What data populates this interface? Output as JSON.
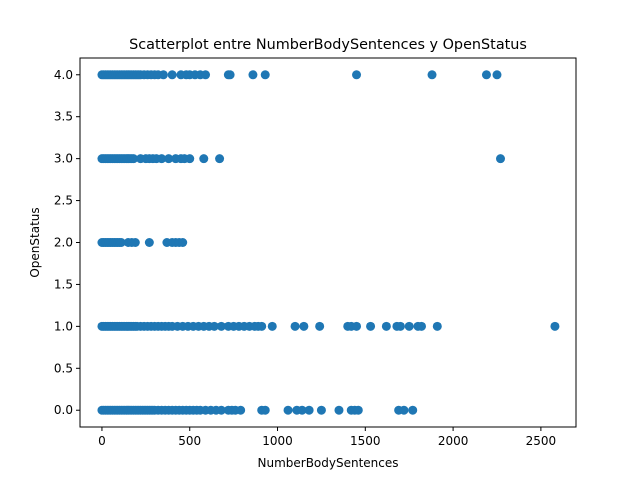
{
  "chart_data": {
    "type": "scatter",
    "title": "Scatterplot entre NumberBodySentences y OpenStatus",
    "xlabel": "NumberBodySentences",
    "ylabel": "OpenStatus",
    "xlim": [
      -125,
      2700
    ],
    "ylim": [
      -0.2,
      4.2
    ],
    "xticks": [
      0,
      500,
      1000,
      1500,
      2000,
      2500
    ],
    "xtick_labels": [
      "0",
      "500",
      "1000",
      "1500",
      "2000",
      "2500"
    ],
    "yticks": [
      0.0,
      0.5,
      1.0,
      1.5,
      2.0,
      2.5,
      3.0,
      3.5,
      4.0
    ],
    "ytick_labels": [
      "0.0",
      "0.5",
      "1.0",
      "1.5",
      "2.0",
      "2.5",
      "3.0",
      "3.5",
      "4.0"
    ],
    "grid": false,
    "marker_color": "#1f77b4",
    "series": [
      {
        "points": [
          [
            0,
            4
          ],
          [
            10,
            4
          ],
          [
            20,
            4
          ],
          [
            30,
            4
          ],
          [
            40,
            4
          ],
          [
            50,
            4
          ],
          [
            60,
            4
          ],
          [
            70,
            4
          ],
          [
            80,
            4
          ],
          [
            90,
            4
          ],
          [
            100,
            4
          ],
          [
            110,
            4
          ],
          [
            120,
            4
          ],
          [
            130,
            4
          ],
          [
            140,
            4
          ],
          [
            150,
            4
          ],
          [
            160,
            4
          ],
          [
            170,
            4
          ],
          [
            180,
            4
          ],
          [
            190,
            4
          ],
          [
            200,
            4
          ],
          [
            210,
            4
          ],
          [
            220,
            4
          ],
          [
            240,
            4
          ],
          [
            260,
            4
          ],
          [
            280,
            4
          ],
          [
            300,
            4
          ],
          [
            320,
            4
          ],
          [
            350,
            4
          ],
          [
            400,
            4
          ],
          [
            450,
            4
          ],
          [
            480,
            4
          ],
          [
            500,
            4
          ],
          [
            530,
            4
          ],
          [
            560,
            4
          ],
          [
            590,
            4
          ],
          [
            720,
            4
          ],
          [
            730,
            4
          ],
          [
            860,
            4
          ],
          [
            930,
            4
          ],
          [
            1450,
            4
          ],
          [
            1880,
            4
          ],
          [
            2190,
            4
          ],
          [
            2250,
            4
          ],
          [
            0,
            3
          ],
          [
            10,
            3
          ],
          [
            20,
            3
          ],
          [
            30,
            3
          ],
          [
            40,
            3
          ],
          [
            50,
            3
          ],
          [
            60,
            3
          ],
          [
            70,
            3
          ],
          [
            80,
            3
          ],
          [
            90,
            3
          ],
          [
            100,
            3
          ],
          [
            110,
            3
          ],
          [
            120,
            3
          ],
          [
            130,
            3
          ],
          [
            140,
            3
          ],
          [
            150,
            3
          ],
          [
            160,
            3
          ],
          [
            170,
            3
          ],
          [
            180,
            3
          ],
          [
            220,
            3
          ],
          [
            250,
            3
          ],
          [
            270,
            3
          ],
          [
            290,
            3
          ],
          [
            310,
            3
          ],
          [
            340,
            3
          ],
          [
            380,
            3
          ],
          [
            420,
            3
          ],
          [
            450,
            3
          ],
          [
            470,
            3
          ],
          [
            500,
            3
          ],
          [
            580,
            3
          ],
          [
            670,
            3
          ],
          [
            2270,
            3
          ],
          [
            0,
            2
          ],
          [
            10,
            2
          ],
          [
            20,
            2
          ],
          [
            30,
            2
          ],
          [
            40,
            2
          ],
          [
            50,
            2
          ],
          [
            60,
            2
          ],
          [
            70,
            2
          ],
          [
            80,
            2
          ],
          [
            90,
            2
          ],
          [
            100,
            2
          ],
          [
            110,
            2
          ],
          [
            150,
            2
          ],
          [
            170,
            2
          ],
          [
            190,
            2
          ],
          [
            270,
            2
          ],
          [
            370,
            2
          ],
          [
            400,
            2
          ],
          [
            420,
            2
          ],
          [
            440,
            2
          ],
          [
            460,
            2
          ],
          [
            0,
            1
          ],
          [
            10,
            1
          ],
          [
            20,
            1
          ],
          [
            30,
            1
          ],
          [
            40,
            1
          ],
          [
            50,
            1
          ],
          [
            60,
            1
          ],
          [
            70,
            1
          ],
          [
            80,
            1
          ],
          [
            90,
            1
          ],
          [
            100,
            1
          ],
          [
            110,
            1
          ],
          [
            120,
            1
          ],
          [
            130,
            1
          ],
          [
            140,
            1
          ],
          [
            150,
            1
          ],
          [
            160,
            1
          ],
          [
            170,
            1
          ],
          [
            180,
            1
          ],
          [
            190,
            1
          ],
          [
            200,
            1
          ],
          [
            220,
            1
          ],
          [
            240,
            1
          ],
          [
            260,
            1
          ],
          [
            280,
            1
          ],
          [
            300,
            1
          ],
          [
            320,
            1
          ],
          [
            340,
            1
          ],
          [
            360,
            1
          ],
          [
            380,
            1
          ],
          [
            400,
            1
          ],
          [
            430,
            1
          ],
          [
            460,
            1
          ],
          [
            490,
            1
          ],
          [
            520,
            1
          ],
          [
            550,
            1
          ],
          [
            580,
            1
          ],
          [
            610,
            1
          ],
          [
            640,
            1
          ],
          [
            680,
            1
          ],
          [
            720,
            1
          ],
          [
            750,
            1
          ],
          [
            780,
            1
          ],
          [
            810,
            1
          ],
          [
            840,
            1
          ],
          [
            870,
            1
          ],
          [
            890,
            1
          ],
          [
            910,
            1
          ],
          [
            970,
            1
          ],
          [
            1100,
            1
          ],
          [
            1150,
            1
          ],
          [
            1240,
            1
          ],
          [
            1400,
            1
          ],
          [
            1420,
            1
          ],
          [
            1450,
            1
          ],
          [
            1530,
            1
          ],
          [
            1620,
            1
          ],
          [
            1680,
            1
          ],
          [
            1700,
            1
          ],
          [
            1750,
            1
          ],
          [
            1800,
            1
          ],
          [
            1820,
            1
          ],
          [
            1910,
            1
          ],
          [
            2580,
            1
          ],
          [
            0,
            0
          ],
          [
            10,
            0
          ],
          [
            20,
            0
          ],
          [
            30,
            0
          ],
          [
            40,
            0
          ],
          [
            50,
            0
          ],
          [
            60,
            0
          ],
          [
            70,
            0
          ],
          [
            80,
            0
          ],
          [
            90,
            0
          ],
          [
            100,
            0
          ],
          [
            110,
            0
          ],
          [
            120,
            0
          ],
          [
            130,
            0
          ],
          [
            140,
            0
          ],
          [
            150,
            0
          ],
          [
            160,
            0
          ],
          [
            170,
            0
          ],
          [
            180,
            0
          ],
          [
            190,
            0
          ],
          [
            200,
            0
          ],
          [
            210,
            0
          ],
          [
            220,
            0
          ],
          [
            230,
            0
          ],
          [
            240,
            0
          ],
          [
            250,
            0
          ],
          [
            260,
            0
          ],
          [
            270,
            0
          ],
          [
            280,
            0
          ],
          [
            290,
            0
          ],
          [
            300,
            0
          ],
          [
            320,
            0
          ],
          [
            340,
            0
          ],
          [
            360,
            0
          ],
          [
            380,
            0
          ],
          [
            400,
            0
          ],
          [
            420,
            0
          ],
          [
            440,
            0
          ],
          [
            460,
            0
          ],
          [
            480,
            0
          ],
          [
            500,
            0
          ],
          [
            520,
            0
          ],
          [
            540,
            0
          ],
          [
            560,
            0
          ],
          [
            590,
            0
          ],
          [
            620,
            0
          ],
          [
            650,
            0
          ],
          [
            680,
            0
          ],
          [
            720,
            0
          ],
          [
            740,
            0
          ],
          [
            760,
            0
          ],
          [
            790,
            0
          ],
          [
            910,
            0
          ],
          [
            930,
            0
          ],
          [
            1060,
            0
          ],
          [
            1110,
            0
          ],
          [
            1140,
            0
          ],
          [
            1180,
            0
          ],
          [
            1250,
            0
          ],
          [
            1350,
            0
          ],
          [
            1420,
            0
          ],
          [
            1440,
            0
          ],
          [
            1460,
            0
          ],
          [
            1690,
            0
          ],
          [
            1720,
            0
          ],
          [
            1770,
            0
          ]
        ]
      }
    ]
  }
}
